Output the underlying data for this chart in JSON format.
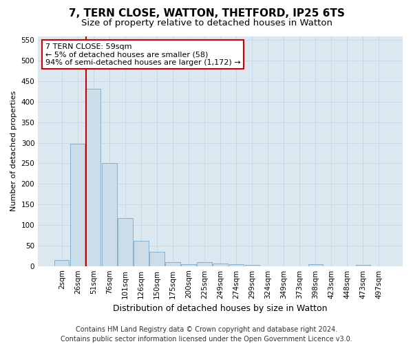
{
  "title_line1": "7, TERN CLOSE, WATTON, THETFORD, IP25 6TS",
  "title_line2": "Size of property relative to detached houses in Watton",
  "xlabel": "Distribution of detached houses by size in Watton",
  "ylabel": "Number of detached properties",
  "bar_labels": [
    "2sqm",
    "26sqm",
    "51sqm",
    "76sqm",
    "101sqm",
    "126sqm",
    "150sqm",
    "175sqm",
    "200sqm",
    "225sqm",
    "249sqm",
    "274sqm",
    "299sqm",
    "324sqm",
    "349sqm",
    "373sqm",
    "398sqm",
    "423sqm",
    "448sqm",
    "473sqm",
    "497sqm"
  ],
  "bar_values": [
    15,
    297,
    432,
    250,
    117,
    62,
    35,
    10,
    5,
    10,
    7,
    5,
    3,
    0,
    0,
    0,
    4,
    0,
    0,
    3,
    0
  ],
  "bar_color": "#ccdce8",
  "bar_edge_color": "#7aaac8",
  "vline_color": "#cc0000",
  "annotation_text": "7 TERN CLOSE: 59sqm\n← 5% of detached houses are smaller (58)\n94% of semi-detached houses are larger (1,172) →",
  "annotation_box_color": "#cc0000",
  "ylim": [
    0,
    560
  ],
  "yticks": [
    0,
    50,
    100,
    150,
    200,
    250,
    300,
    350,
    400,
    450,
    500,
    550
  ],
  "grid_color": "#c8d8e8",
  "bg_color": "#dce8f0",
  "footer": "Contains HM Land Registry data © Crown copyright and database right 2024.\nContains public sector information licensed under the Open Government Licence v3.0.",
  "title1_fontsize": 11,
  "title2_fontsize": 9.5,
  "xlabel_fontsize": 9,
  "ylabel_fontsize": 8,
  "annotation_fontsize": 8,
  "footer_fontsize": 7,
  "tick_fontsize": 7.5
}
